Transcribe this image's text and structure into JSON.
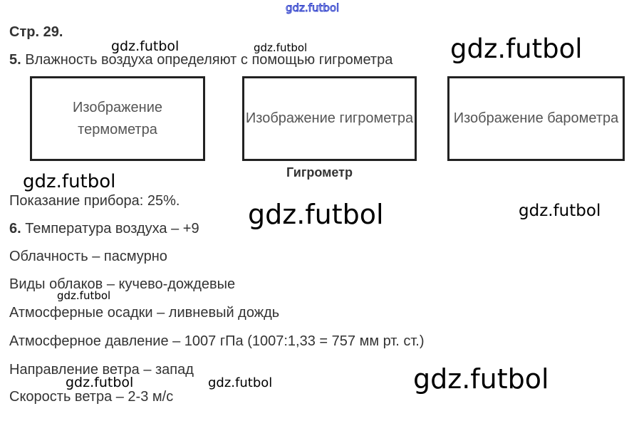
{
  "page_ref": "Стр. 29.",
  "q5": {
    "num": "5.",
    "text": " Влажность воздуха определяют с помощью гигрометра"
  },
  "boxes": [
    "Изображение термометра",
    "Изображение гигрометра",
    "Изображение барометра"
  ],
  "caption": "Гигрометр",
  "reading": "Показание прибора: 25%.",
  "q6": {
    "num": "6.",
    "text": " Температура воздуха – +9"
  },
  "lines": [
    "Облачность – пасмурно",
    "Виды облаков – кучево-дождевые",
    "Атмосферные осадки – ливневый дождь",
    "Атмосферное давление – 1007 гПа (1007:1,33 = 757 мм рт. ст.)",
    "Направление ветра – запад",
    "Скорость ветра – 2-3 м/с"
  ],
  "watermark": "gdz.futbol"
}
